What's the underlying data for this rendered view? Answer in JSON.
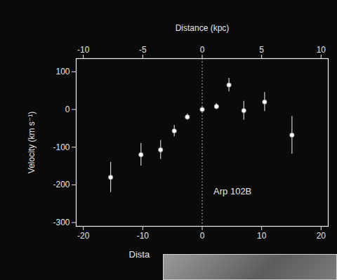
{
  "chart_data": {
    "type": "scatter",
    "x_label": "Dista",
    "x2_label": "Distance (kpc)",
    "y_label": "Velocity (km s⁻¹)",
    "x": [
      -15.4,
      -10.3,
      -7.0,
      -4.7,
      -2.5,
      0,
      2.4,
      4.5,
      7.0,
      10.5,
      15.1
    ],
    "values": [
      -180,
      -120,
      -107,
      -57,
      -20,
      0,
      8,
      65,
      -3,
      20,
      -68
    ],
    "errors": [
      40,
      30,
      25,
      15,
      8,
      5,
      8,
      18,
      25,
      25,
      50
    ],
    "xlim": [
      -21.2,
      21.2
    ],
    "xticks": [
      -20,
      -10,
      0,
      10,
      20
    ],
    "x2lim": [
      -10.6,
      10.6
    ],
    "x2ticks": [
      -10,
      -5,
      0,
      5,
      10
    ],
    "ylim": [
      -310,
      135
    ],
    "yticks": [
      -300,
      -200,
      -100,
      0,
      100
    ],
    "color": "#ffffff",
    "marker": "circle",
    "reference_line": {
      "x": 0,
      "line_style": "dotted"
    },
    "annotations": [
      {
        "text": "Arp 102B",
        "x": 1.9,
        "y": -217
      }
    ]
  }
}
